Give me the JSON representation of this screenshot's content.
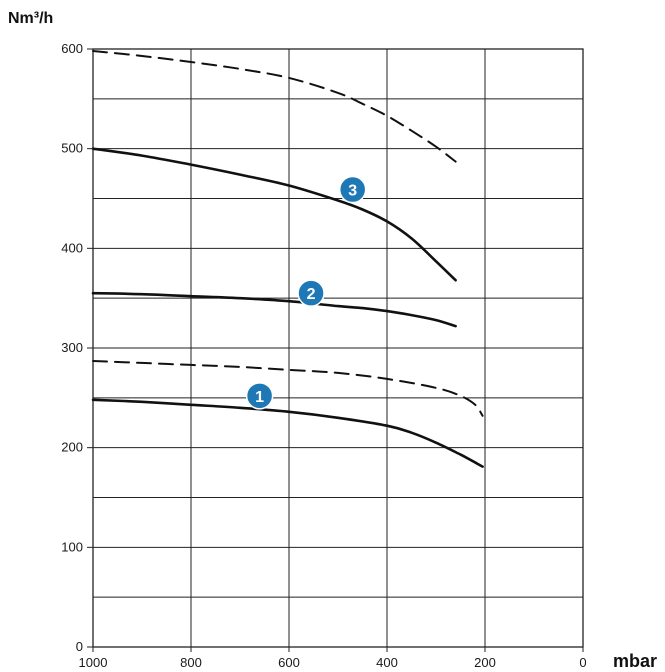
{
  "chart_data": {
    "type": "line",
    "title": "",
    "ylabel": "Nm³/h",
    "xlabel": "mbar",
    "x_reversed": true,
    "xlim": [
      1000,
      0
    ],
    "ylim": [
      0,
      600
    ],
    "x_ticks": [
      "1000",
      "800",
      "600",
      "400",
      "200",
      "0"
    ],
    "y_ticks": [
      "0",
      "100",
      "200",
      "300",
      "400",
      "500",
      "600"
    ],
    "grid": true,
    "series": [
      {
        "name": "",
        "style": "dashed",
        "x": [
          1000,
          900,
          800,
          700,
          600,
          500,
          450,
          400,
          350,
          300,
          260
        ],
        "y": [
          598,
          593,
          587,
          580,
          571,
          556,
          545,
          533,
          518,
          502,
          487
        ]
      },
      {
        "name": "",
        "style": "solid",
        "x": [
          1000,
          900,
          800,
          700,
          600,
          500,
          450,
          400,
          350,
          300,
          260
        ],
        "y": [
          500,
          493,
          484,
          474,
          463,
          448,
          439,
          427,
          410,
          387,
          368
        ]
      },
      {
        "name": "",
        "style": "solid",
        "x": [
          1000,
          900,
          800,
          700,
          600,
          500,
          450,
          400,
          350,
          300,
          260
        ],
        "y": [
          355,
          354,
          352,
          350,
          347,
          342,
          340,
          337,
          333,
          328,
          322
        ]
      },
      {
        "name": "",
        "style": "dashed",
        "x": [
          1000,
          900,
          800,
          700,
          600,
          500,
          400,
          300,
          250,
          220,
          205
        ],
        "y": [
          287,
          285,
          283,
          281,
          278,
          275,
          269,
          260,
          252,
          243,
          232
        ]
      },
      {
        "name": "",
        "style": "solid",
        "x": [
          1000,
          900,
          800,
          700,
          600,
          500,
          400,
          350,
          300,
          250,
          205
        ],
        "y": [
          248,
          246,
          243,
          240,
          236,
          230,
          222,
          215,
          205,
          193,
          181
        ]
      }
    ],
    "markers": [
      {
        "label": "1",
        "x": 660,
        "y": 252
      },
      {
        "label": "2",
        "x": 555,
        "y": 355
      },
      {
        "label": "3",
        "x": 470,
        "y": 459
      }
    ]
  },
  "colors": {
    "marker": "#1f78b6",
    "line": "#111111",
    "grid": "#222222"
  }
}
